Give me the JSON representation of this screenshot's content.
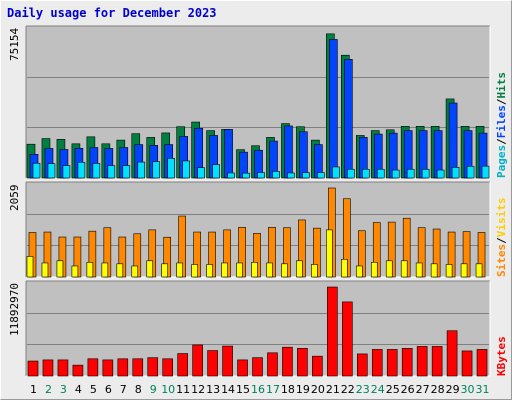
{
  "title": "Daily usage for December 2023",
  "colors": {
    "pages": "#00e0ff",
    "files": "#0044ff",
    "hits": "#008040",
    "visits": "#ff8800",
    "sites": "#ffff00",
    "kbytes": "#ff0000",
    "weekend": "#00805c",
    "weekday": "#000000",
    "plot_bg": "#c0c0c0",
    "grid": "#808080"
  },
  "legend": {
    "top": [
      {
        "text": "Pages",
        "color": "#00b0c8"
      },
      {
        "text": "/",
        "color": "#000000"
      },
      {
        "text": "Files",
        "color": "#0044ff"
      },
      {
        "text": "/",
        "color": "#000000"
      },
      {
        "text": "Hits",
        "color": "#008040"
      }
    ],
    "middle": [
      {
        "text": "Sites",
        "color": "#ff8800"
      },
      {
        "text": "/",
        "color": "#000000"
      },
      {
        "text": "Visits",
        "color": "#ffcc00"
      }
    ],
    "bottom": [
      {
        "text": "KBytes",
        "color": "#ff0000"
      }
    ]
  },
  "chart_data": [
    {
      "type": "bar",
      "panel": "hits-files-pages",
      "ymax_label": "75154",
      "ylim": [
        0,
        75154
      ],
      "categories": [
        "1",
        "2",
        "3",
        "4",
        "5",
        "6",
        "7",
        "8",
        "9",
        "10",
        "11",
        "12",
        "13",
        "14",
        "15",
        "16",
        "17",
        "18",
        "19",
        "20",
        "21",
        "22",
        "23",
        "24",
        "25",
        "26",
        "27",
        "28",
        "29",
        "30",
        "31"
      ],
      "weekend_days": [
        "2",
        "3",
        "9",
        "10",
        "16",
        "17",
        "23",
        "24",
        "30",
        "31"
      ],
      "series": [
        {
          "name": "Hits",
          "values": [
            17400,
            20300,
            19900,
            17600,
            21200,
            17600,
            19500,
            22800,
            20900,
            23200,
            26400,
            28800,
            24400,
            25000,
            14600,
            16600,
            20900,
            28000,
            26400,
            19500,
            74200,
            63200,
            21900,
            24400,
            24800,
            26600,
            26600,
            26600,
            40700,
            26600,
            26600
          ]
        },
        {
          "name": "Files",
          "values": [
            12200,
            15200,
            14700,
            15300,
            15700,
            15200,
            15700,
            17200,
            16800,
            17200,
            21400,
            25600,
            21900,
            25000,
            13300,
            14300,
            19000,
            26800,
            23800,
            17200,
            71300,
            61100,
            20900,
            22600,
            23100,
            24400,
            24400,
            24400,
            38600,
            24400,
            23100
          ]
        },
        {
          "name": "Pages",
          "values": [
            7600,
            7400,
            6400,
            8100,
            7500,
            6400,
            6400,
            8200,
            8400,
            10100,
            8800,
            5300,
            6900,
            2600,
            2500,
            2800,
            3400,
            2600,
            2800,
            2800,
            5700,
            4500,
            4500,
            4500,
            4100,
            4500,
            4500,
            4100,
            5500,
            6000,
            6100
          ]
        }
      ]
    },
    {
      "type": "bar",
      "panel": "visits-sites",
      "ymax_label": "2059",
      "ylim": [
        0,
        2059
      ],
      "categories": [
        "1",
        "2",
        "3",
        "4",
        "5",
        "6",
        "7",
        "8",
        "9",
        "10",
        "11",
        "12",
        "13",
        "14",
        "15",
        "16",
        "17",
        "18",
        "19",
        "20",
        "21",
        "22",
        "23",
        "24",
        "25",
        "26",
        "27",
        "28",
        "29",
        "30",
        "31"
      ],
      "series": [
        {
          "name": "Sites",
          "values": [
            1030,
            1040,
            925,
            925,
            1060,
            1140,
            925,
            1000,
            1090,
            920,
            1410,
            1040,
            1040,
            1090,
            1150,
            1010,
            1150,
            1140,
            1320,
            1130,
            2059,
            1810,
            1070,
            1260,
            1270,
            1360,
            1140,
            1110,
            1040,
            1050,
            1030
          ]
        },
        {
          "name": "Visits",
          "values": [
            475,
            325,
            375,
            255,
            340,
            325,
            305,
            255,
            375,
            305,
            325,
            290,
            290,
            325,
            325,
            340,
            325,
            305,
            375,
            290,
            1090,
            410,
            255,
            340,
            375,
            375,
            325,
            305,
            290,
            305,
            305
          ]
        }
      ]
    },
    {
      "type": "bar",
      "panel": "kbytes",
      "ymax_label": "11892970",
      "ylim": [
        0,
        11892970
      ],
      "categories": [
        "1",
        "2",
        "3",
        "4",
        "5",
        "6",
        "7",
        "8",
        "9",
        "10",
        "11",
        "12",
        "13",
        "14",
        "15",
        "16",
        "17",
        "18",
        "19",
        "20",
        "21",
        "22",
        "23",
        "24",
        "25",
        "26",
        "27",
        "28",
        "29",
        "30",
        "31"
      ],
      "series": [
        {
          "name": "KBytes",
          "values": [
            2000000,
            2150000,
            2150000,
            1450000,
            2300000,
            2150000,
            2300000,
            2300000,
            2450000,
            2300000,
            3000000,
            4150000,
            3400000,
            4000000,
            2150000,
            2450000,
            3100000,
            3850000,
            3700000,
            2650000,
            11892970,
            9900000,
            2950000,
            3550000,
            3550000,
            3700000,
            3950000,
            3950000,
            6050000,
            3350000,
            3550000
          ]
        }
      ]
    }
  ]
}
